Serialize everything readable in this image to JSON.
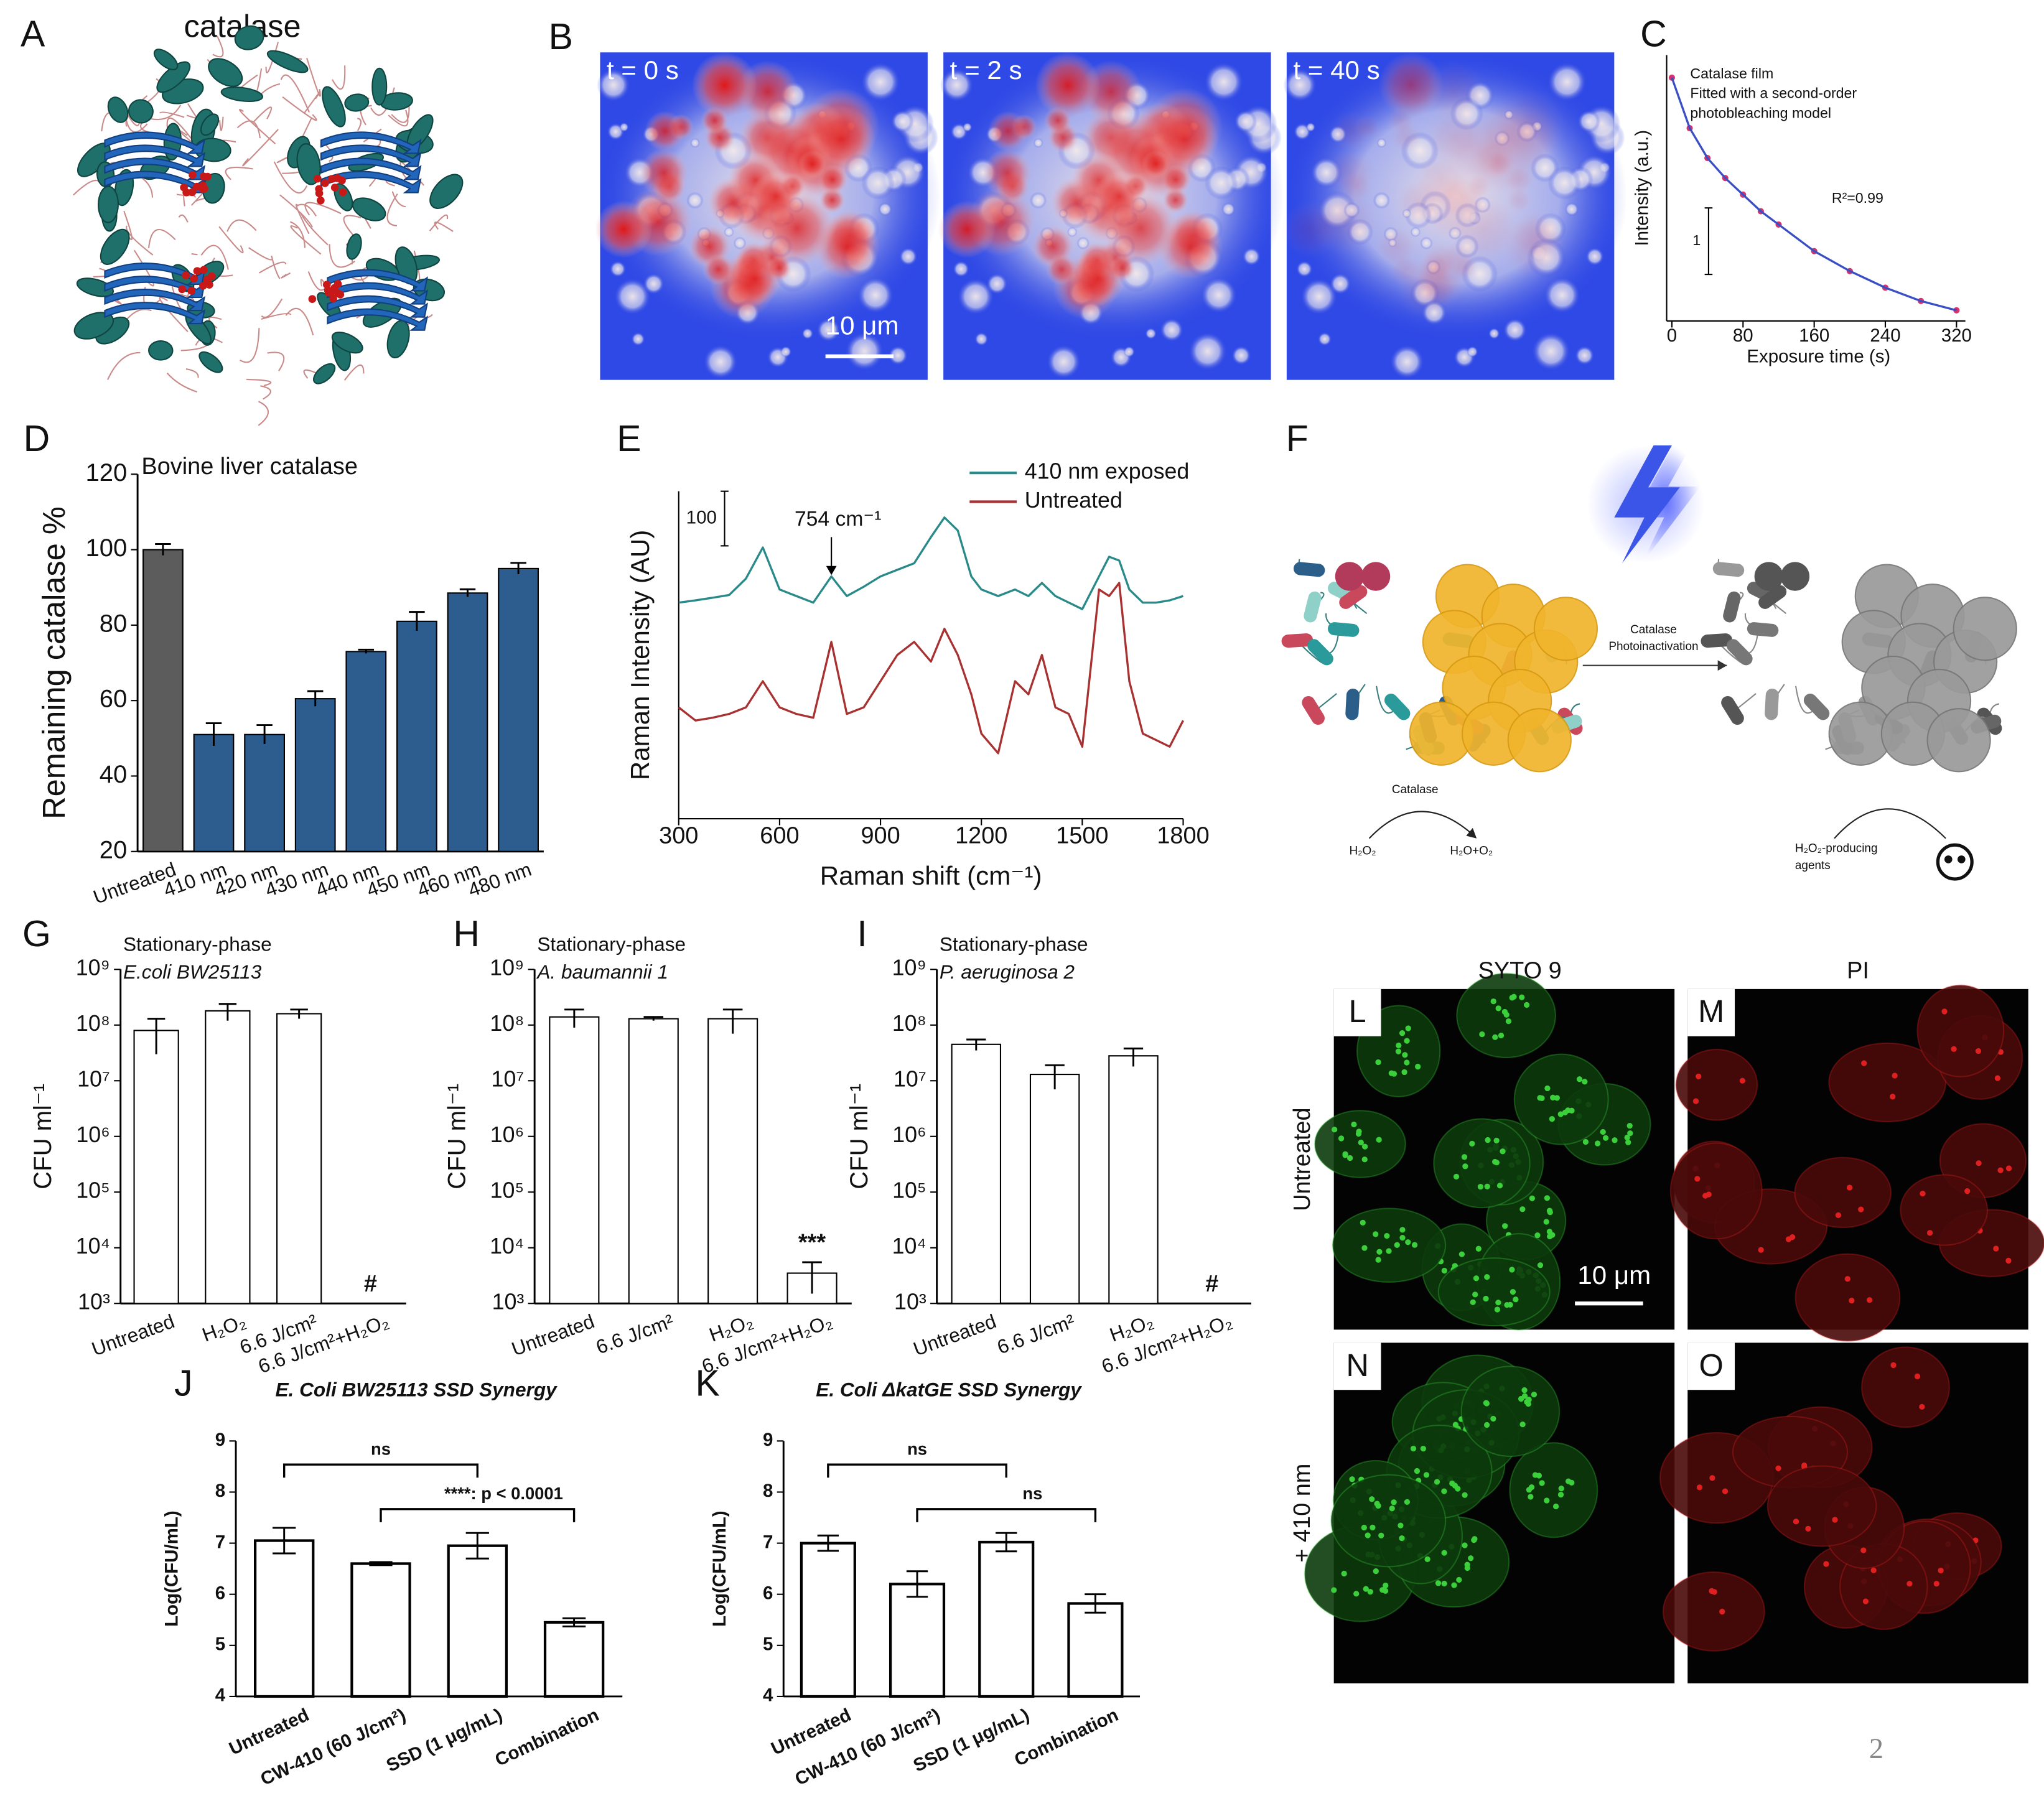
{
  "panel_labels": [
    "A",
    "B",
    "C",
    "D",
    "E",
    "F",
    "G",
    "H",
    "I",
    "J",
    "K",
    "L",
    "M",
    "N",
    "O"
  ],
  "structure": {
    "title": "catalase"
  },
  "bleaching": {
    "frames": [
      "t = 0 s",
      "t = 2 s",
      "t = 40 s"
    ],
    "scale_bar": "10 μm"
  },
  "schematic": {
    "enzyme": "Catalase",
    "substrate": "H₂O₂",
    "products": "H₂O+O₂",
    "arrow": [
      "Catalase",
      "Photoinactivation"
    ],
    "agents": [
      "H₂O₂-producing",
      "agents"
    ]
  },
  "microscopy": {
    "columns": [
      "SYTO 9",
      "PI"
    ],
    "rows": [
      "Untreated",
      "+ 410 nm"
    ],
    "scale_bar": "10 μm"
  },
  "page_number": "2",
  "chart_data": [
    {
      "type": "line",
      "xlabel": "Exposure time (s)",
      "ylabel": "Intensity (a.u.)",
      "annotations": [
        "Catalase film",
        "Fitted with a second-order",
        "photobleaching model"
      ],
      "r2": "R²=0.99",
      "scale_bar": 1,
      "x": [
        0,
        20,
        40,
        60,
        80,
        100,
        120,
        160,
        200,
        240,
        280,
        320
      ],
      "series": [
        {
          "color": "#d6336c",
          "markers": true,
          "values": [
            3.66,
            2.9,
            2.45,
            2.15,
            1.9,
            1.65,
            1.45,
            1.05,
            0.75,
            0.5,
            0.3,
            0.16
          ]
        },
        {
          "color": "#3b4fc4",
          "values": [
            3.66,
            2.9,
            2.45,
            2.15,
            1.9,
            1.65,
            1.45,
            1.05,
            0.75,
            0.5,
            0.3,
            0.16
          ]
        }
      ],
      "xlim": [
        0,
        330
      ],
      "xticks": [
        0,
        80,
        160,
        240,
        320
      ],
      "ylim": [
        0,
        4
      ]
    },
    {
      "type": "bar",
      "title": "Bovine liver catalase",
      "ylabel": "Remaining catalase %",
      "categories": [
        "Untreated",
        "410 nm",
        "420 nm",
        "430 nm",
        "440 nm",
        "450 nm",
        "460 nm",
        "480 nm"
      ],
      "values": [
        100,
        51,
        51,
        60.5,
        73,
        81,
        88.5,
        95
      ],
      "errors": [
        1.5,
        3,
        2.5,
        2,
        0.5,
        2.5,
        1,
        1.5
      ],
      "colors": [
        "#5c5c5c",
        "#2d5d8e",
        "#2d5d8e",
        "#2d5d8e",
        "#2d5d8e",
        "#2d5d8e",
        "#2d5d8e",
        "#2d5d8e"
      ],
      "edgecolor": "#000000",
      "ylim": [
        20,
        120
      ],
      "yticks": [
        20,
        40,
        60,
        80,
        100,
        120
      ]
    },
    {
      "type": "line",
      "xlabel": "Raman shift (cm⁻¹)",
      "ylabel": "Raman Intensity (AU)",
      "legend": "upper right",
      "x": [
        300,
        350,
        400,
        450,
        500,
        550,
        600,
        650,
        700,
        754,
        800,
        850,
        900,
        950,
        1000,
        1050,
        1090,
        1130,
        1170,
        1200,
        1250,
        1300,
        1340,
        1380,
        1420,
        1460,
        1500,
        1550,
        1580,
        1610,
        1640,
        1680,
        1720,
        1760,
        1800
      ],
      "series": [
        {
          "name": "410 nm exposed",
          "color": "#2a8a8a",
          "values": [
            396,
            400,
            405,
            410,
            440,
            497,
            420,
            408,
            396,
            444,
            408,
            425,
            444,
            456,
            468,
            516,
            552,
            528,
            444,
            420,
            408,
            420,
            408,
            432,
            408,
            396,
            384,
            444,
            480,
            473,
            420,
            396,
            396,
            400,
            408
          ]
        },
        {
          "name": "Untreated",
          "color": "#a83232",
          "values": [
            204,
            180,
            185,
            192,
            204,
            252,
            204,
            192,
            185,
            324,
            192,
            204,
            252,
            300,
            324,
            288,
            348,
            300,
            228,
            156,
            120,
            252,
            228,
            300,
            204,
            192,
            132,
            420,
            408,
            432,
            252,
            156,
            144,
            132,
            180
          ]
        }
      ],
      "annotation": {
        "x": 754,
        "label": "754 cm⁻¹"
      },
      "scale_bar": 100,
      "xlim": [
        300,
        1800
      ],
      "xticks": [
        300,
        600,
        900,
        1200,
        1500,
        1800
      ],
      "ylim": [
        0,
        600
      ]
    },
    {
      "type": "bar",
      "log_y": true,
      "title": "Stationary-phase",
      "subtitle": "E.coli BW25113",
      "ylabel": "CFU ml⁻¹",
      "categories": [
        "Untreated",
        "H₂O₂",
        "6.6 J/cm²",
        "6.6 J/cm²+H₂O₂"
      ],
      "values": [
        80000000,
        180000000,
        160000000,
        null
      ],
      "errors": [
        50000000,
        60000000,
        30000000,
        null
      ],
      "value_labels": [
        null,
        null,
        null,
        "#"
      ],
      "color": "#ffffff",
      "edgecolor": "#000000",
      "ylim": [
        1000,
        1000000000
      ],
      "yticks": [
        {
          "value": 1000,
          "label": "10³"
        },
        {
          "value": 10000,
          "label": "10⁴"
        },
        {
          "value": 100000,
          "label": "10⁵"
        },
        {
          "value": 1000000,
          "label": "10⁶"
        },
        {
          "value": 10000000,
          "label": "10⁷"
        },
        {
          "value": 100000000,
          "label": "10⁸"
        },
        {
          "value": 1000000000,
          "label": "10⁹"
        }
      ]
    },
    {
      "type": "bar",
      "log_y": true,
      "title": "Stationary-phase",
      "subtitle": "A. baumannii 1",
      "ylabel": "CFU ml⁻¹",
      "categories": [
        "Untreated",
        "6.6 J/cm²",
        "H₂O₂",
        "6.6 J/cm²+H₂O₂"
      ],
      "values": [
        140000000,
        130000000,
        130000000,
        3500
      ],
      "errors": [
        50000000,
        10000000,
        60000000,
        2000
      ],
      "value_labels": [
        null,
        null,
        null,
        "***"
      ],
      "color": "#ffffff",
      "edgecolor": "#000000",
      "ylim": [
        1000,
        1000000000
      ],
      "yticks": [
        {
          "value": 1000,
          "label": "10³"
        },
        {
          "value": 10000,
          "label": "10⁴"
        },
        {
          "value": 100000,
          "label": "10⁵"
        },
        {
          "value": 1000000,
          "label": "10⁶"
        },
        {
          "value": 10000000,
          "label": "10⁷"
        },
        {
          "value": 100000000,
          "label": "10⁸"
        },
        {
          "value": 1000000000,
          "label": "10⁹"
        }
      ]
    },
    {
      "type": "bar",
      "log_y": true,
      "title": "Stationary-phase",
      "subtitle": "P. aeruginosa 2",
      "ylabel": "CFU ml⁻¹",
      "categories": [
        "Untreated",
        "6.6 J/cm²",
        "H₂O₂",
        "6.6 J/cm²+H₂O₂"
      ],
      "values": [
        45000000,
        13000000,
        28000000,
        null
      ],
      "errors": [
        10000000,
        6000000,
        10000000,
        null
      ],
      "value_labels": [
        null,
        null,
        null,
        "#"
      ],
      "color": "#ffffff",
      "edgecolor": "#000000",
      "ylim": [
        1000,
        1000000000
      ],
      "yticks": [
        {
          "value": 1000,
          "label": "10³"
        },
        {
          "value": 10000,
          "label": "10⁴"
        },
        {
          "value": 100000,
          "label": "10⁵"
        },
        {
          "value": 1000000,
          "label": "10⁶"
        },
        {
          "value": 10000000,
          "label": "10⁷"
        },
        {
          "value": 100000000,
          "label": "10⁸"
        },
        {
          "value": 1000000000,
          "label": "10⁹"
        }
      ]
    },
    {
      "type": "bar",
      "title": "E. Coli BW25113 SSD Synergy",
      "ylabel": "Log(CFU/mL)",
      "categories": [
        "Untreated",
        "CW-410 (60 J/cm²)",
        "SSD (1 μg/mL)",
        "Combination"
      ],
      "values": [
        7.05,
        6.6,
        6.95,
        5.45
      ],
      "errors": [
        0.25,
        0.03,
        0.25,
        0.08
      ],
      "color": "#ffffff",
      "edgecolor": "#000000",
      "ylim": [
        4,
        9
      ],
      "yticks": [
        4,
        5,
        6,
        7,
        8,
        9
      ],
      "brackets": [
        {
          "from": 0,
          "to": 2,
          "label": "ns"
        },
        {
          "from": 1,
          "to": 3,
          "label": "****: p < 0.0001"
        }
      ]
    },
    {
      "type": "bar",
      "title": "E. Coli ΔkatGE SSD Synergy",
      "ylabel": "Log(CFU/mL)",
      "categories": [
        "Untreated",
        "CW-410 (60 J/cm²)",
        "SSD (1 μg/mL)",
        "Combination"
      ],
      "values": [
        7.0,
        6.2,
        7.02,
        5.82
      ],
      "errors": [
        0.15,
        0.25,
        0.18,
        0.18
      ],
      "color": "#ffffff",
      "edgecolor": "#000000",
      "ylim": [
        4,
        9
      ],
      "yticks": [
        4,
        5,
        6,
        7,
        8,
        9
      ],
      "brackets": [
        {
          "from": 0,
          "to": 2,
          "label": "ns"
        },
        {
          "from": 1,
          "to": 3,
          "label": "ns"
        }
      ]
    }
  ]
}
